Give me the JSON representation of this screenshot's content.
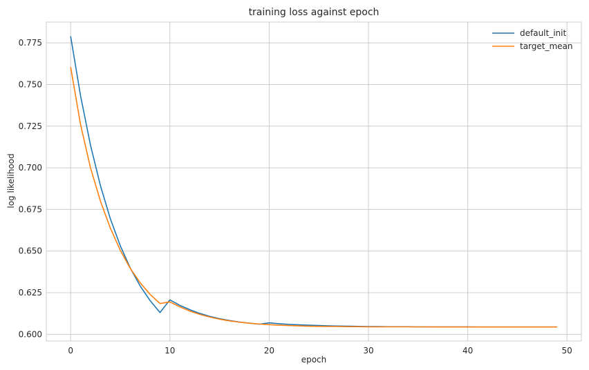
{
  "chart_data": {
    "type": "line",
    "title": "training loss against epoch",
    "xlabel": "epoch",
    "ylabel": "log likelihood",
    "xlim": [
      -2.45,
      51.45
    ],
    "ylim": [
      0.596,
      0.7875
    ],
    "xticks": [
      0,
      10,
      20,
      30,
      40,
      50
    ],
    "xtick_labels": [
      "0",
      "10",
      "20",
      "30",
      "40",
      "50"
    ],
    "yticks": [
      0.6,
      0.625,
      0.65,
      0.675,
      0.7,
      0.725,
      0.75,
      0.775
    ],
    "ytick_labels": [
      "0.600",
      "0.625",
      "0.650",
      "0.675",
      "0.700",
      "0.725",
      "0.750",
      "0.775"
    ],
    "grid": true,
    "legend_position": "top-right",
    "x": [
      0,
      1,
      2,
      3,
      4,
      5,
      6,
      7,
      8,
      9,
      10,
      11,
      12,
      13,
      14,
      15,
      16,
      17,
      18,
      19,
      20,
      21,
      22,
      23,
      24,
      25,
      26,
      27,
      28,
      29,
      30,
      31,
      32,
      33,
      34,
      35,
      36,
      37,
      38,
      39,
      40,
      41,
      42,
      43,
      44,
      45,
      46,
      47,
      48,
      49
    ],
    "series": [
      {
        "name": "default_init",
        "color": "#1f77b4",
        "values": [
          0.779,
          0.7432,
          0.7136,
          0.6893,
          0.6694,
          0.6532,
          0.6399,
          0.6291,
          0.6203,
          0.6131,
          0.6207,
          0.6174,
          0.6148,
          0.6126,
          0.6108,
          0.6094,
          0.6083,
          0.6074,
          0.6067,
          0.6061,
          0.6069,
          0.6064,
          0.606,
          0.6057,
          0.6055,
          0.6053,
          0.6051,
          0.605,
          0.6049,
          0.6048,
          0.6047,
          0.6047,
          0.6046,
          0.6046,
          0.6046,
          0.6045,
          0.6045,
          0.6045,
          0.6045,
          0.6045,
          0.6045,
          0.6044,
          0.6044,
          0.6044,
          0.6044,
          0.6044,
          0.6044,
          0.6044,
          0.6044,
          0.6044
        ]
      },
      {
        "name": "target_mean",
        "color": "#ff7f0e",
        "values": [
          0.7605,
          0.7259,
          0.7,
          0.68,
          0.6638,
          0.6505,
          0.6397,
          0.631,
          0.624,
          0.6185,
          0.6195,
          0.6165,
          0.614,
          0.612,
          0.6104,
          0.6091,
          0.6081,
          0.6073,
          0.6067,
          0.6062,
          0.6058,
          0.6055,
          0.6053,
          0.6051,
          0.6049,
          0.6048,
          0.6047,
          0.6047,
          0.6046,
          0.6046,
          0.6045,
          0.6045,
          0.6045,
          0.6045,
          0.6045,
          0.6045,
          0.6045,
          0.6044,
          0.6044,
          0.6044,
          0.6044,
          0.6044,
          0.6044,
          0.6044,
          0.6044,
          0.6044,
          0.6044,
          0.6044,
          0.6044,
          0.6044
        ]
      }
    ]
  }
}
